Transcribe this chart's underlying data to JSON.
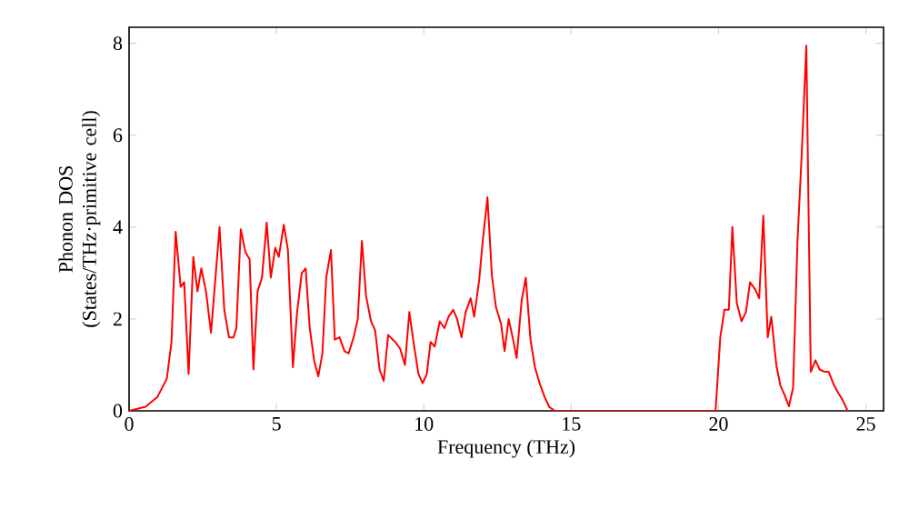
{
  "chart_data": {
    "type": "line",
    "xlabel": "Frequency (THz)",
    "ylabel": "Phonon DOS (States/THz·primitive cell)",
    "xlim": [
      0,
      25.6
    ],
    "ylim": [
      0,
      8.35
    ],
    "xticks": [
      0,
      5,
      10,
      15,
      20,
      25
    ],
    "yticks": [
      0,
      2,
      4,
      6,
      8
    ],
    "marker": "none",
    "line_style": "solid",
    "series": [
      {
        "color": "#ff0000",
        "x": [
          0,
          0.56,
          0.96,
          1.28,
          1.44,
          1.58,
          1.75,
          1.87,
          2.02,
          2.18,
          2.32,
          2.45,
          2.61,
          2.78,
          3.07,
          3.23,
          3.39,
          3.54,
          3.64,
          3.79,
          3.95,
          4.09,
          4.22,
          4.36,
          4.51,
          4.67,
          4.81,
          4.96,
          5.08,
          5.25,
          5.39,
          5.56,
          5.7,
          5.86,
          5.99,
          6.13,
          6.28,
          6.42,
          6.56,
          6.69,
          6.85,
          6.98,
          7.14,
          7.31,
          7.45,
          7.62,
          7.76,
          7.9,
          8.04,
          8.21,
          8.35,
          8.5,
          8.64,
          8.79,
          9.03,
          9.2,
          9.36,
          9.51,
          9.65,
          9.82,
          9.96,
          10.1,
          10.23,
          10.37,
          10.54,
          10.7,
          10.84,
          11.0,
          11.13,
          11.28,
          11.42,
          11.59,
          11.71,
          11.88,
          12.0,
          12.16,
          12.31,
          12.45,
          12.62,
          12.74,
          12.88,
          13.03,
          13.15,
          13.32,
          13.46,
          13.62,
          13.77,
          13.93,
          14.1,
          14.26,
          14.45,
          19.9,
          20.06,
          20.2,
          20.35,
          20.47,
          20.62,
          20.78,
          20.93,
          21.07,
          21.24,
          21.38,
          21.52,
          21.67,
          21.79,
          21.96,
          22.1,
          22.24,
          22.39,
          22.53,
          22.68,
          22.82,
          22.98,
          23.13,
          23.29,
          23.43,
          23.6,
          23.74,
          23.89,
          24.05,
          24.2,
          24.38
        ],
        "values": [
          0,
          0.09,
          0.3,
          0.7,
          1.5,
          3.9,
          2.7,
          2.8,
          0.8,
          3.35,
          2.6,
          3.1,
          2.6,
          1.7,
          4.0,
          2.2,
          1.6,
          1.6,
          1.8,
          3.95,
          3.45,
          3.3,
          0.9,
          2.6,
          2.9,
          4.1,
          2.9,
          3.55,
          3.35,
          4.05,
          3.5,
          0.95,
          2.15,
          3.0,
          3.1,
          1.8,
          1.1,
          0.75,
          1.25,
          2.9,
          3.5,
          1.55,
          1.6,
          1.3,
          1.25,
          1.6,
          2.0,
          3.7,
          2.5,
          1.95,
          1.75,
          0.9,
          0.65,
          1.65,
          1.5,
          1.35,
          1.0,
          2.15,
          1.5,
          0.8,
          0.6,
          0.8,
          1.5,
          1.4,
          1.95,
          1.8,
          2.05,
          2.2,
          2.0,
          1.6,
          2.15,
          2.45,
          2.05,
          2.85,
          3.7,
          4.65,
          2.95,
          2.25,
          1.9,
          1.3,
          2.0,
          1.55,
          1.15,
          2.4,
          2.9,
          1.55,
          0.95,
          0.6,
          0.3,
          0.08,
          0,
          0,
          1.6,
          2.2,
          2.2,
          4.0,
          2.35,
          1.95,
          2.15,
          2.8,
          2.65,
          2.45,
          4.25,
          1.6,
          2.05,
          1.0,
          0.55,
          0.35,
          0.1,
          0.5,
          3.7,
          5.55,
          7.95,
          0.85,
          1.1,
          0.9,
          0.85,
          0.85,
          0.6,
          0.4,
          0.25,
          0
        ]
      }
    ]
  }
}
